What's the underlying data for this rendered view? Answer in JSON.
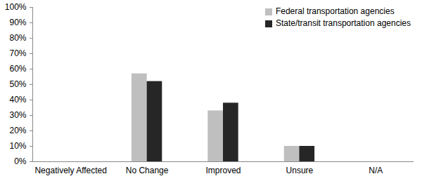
{
  "chart_data": {
    "type": "bar",
    "categories": [
      "Negatively Affected",
      "No Change",
      "Improved",
      "Unsure",
      "N/A"
    ],
    "series": [
      {
        "name": "Federal transportation agencies",
        "color": "#bfbfbf",
        "values": [
          0,
          57,
          33,
          10,
          0
        ]
      },
      {
        "name": "State/transit transportation agencies",
        "color": "#262626",
        "values": [
          0,
          52,
          38,
          10,
          0
        ]
      }
    ],
    "ylim": [
      0,
      100
    ],
    "yticks": [
      {
        "value": 0,
        "label": "0%"
      },
      {
        "value": 10,
        "label": "10%"
      },
      {
        "value": 20,
        "label": "20%"
      },
      {
        "value": 30,
        "label": "30%"
      },
      {
        "value": 40,
        "label": "40%"
      },
      {
        "value": 50,
        "label": "50%"
      },
      {
        "value": 60,
        "label": "60%"
      },
      {
        "value": 70,
        "label": "70%"
      },
      {
        "value": 80,
        "label": "80%"
      },
      {
        "value": 90,
        "label": "90%"
      },
      {
        "value": 100,
        "label": "100%"
      }
    ],
    "grid": false,
    "legend": "top-right"
  }
}
